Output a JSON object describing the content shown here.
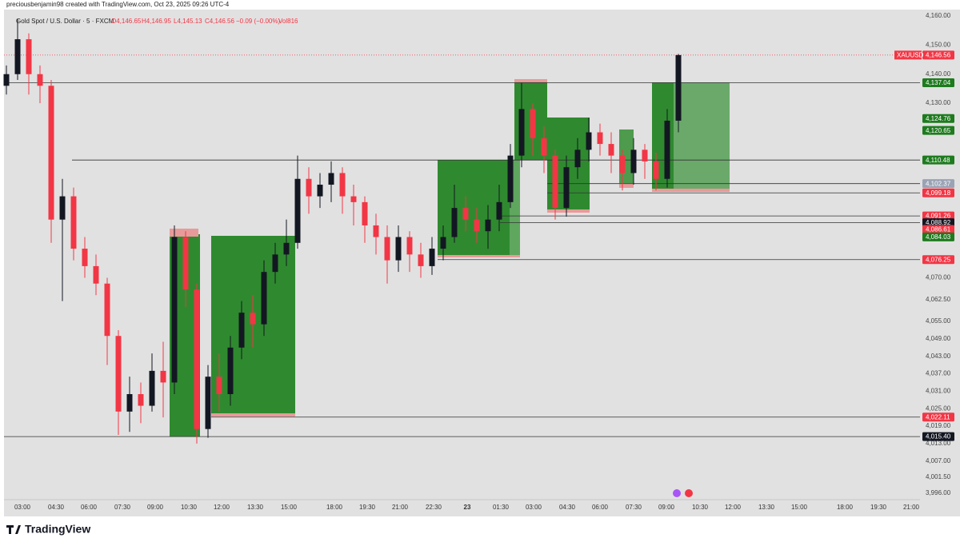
{
  "header": {
    "credit": "preciousbenjamin98 created with TradingView.com, Oct 23, 2025 09:26 UTC-4",
    "logo": "TradingView"
  },
  "chart_data": {
    "type": "candlestick",
    "title": "Gold Spot / U.S. Dollar · 5 · FXCM",
    "ohlc_legend": {
      "open": "O4,146.65",
      "high": "H4,146.95",
      "low": "L4,145.13",
      "close": "C4,146.56",
      "change": "−0.09 (−0.00%)",
      "volume": "Vol816"
    },
    "up_color": "#131722",
    "down_color": "#f23645",
    "open": [
      4136,
      4140,
      4152,
      4140,
      4136,
      4090,
      4098,
      4080,
      4074,
      4068,
      4050,
      4024,
      4030,
      4026,
      4038,
      4034,
      4084,
      4066,
      4018,
      4036,
      4030,
      4046,
      4058,
      4054,
      4072,
      4078,
      4082,
      4104,
      4098,
      4102,
      4106,
      4098,
      4096,
      4088,
      4084,
      4076,
      4084,
      4078,
      4074,
      4080,
      4084,
      4094,
      4090,
      4086,
      4090,
      4096,
      4112,
      4128,
      4118,
      4112,
      4094,
      4108,
      4114,
      4120,
      4116,
      4112,
      4106,
      4114,
      4110,
      4104,
      4124
    ],
    "high": [
      4143,
      4159,
      4154,
      4143,
      4138,
      4104,
      4101,
      4084,
      4078,
      4070,
      4052,
      4036,
      4034,
      4044,
      4048,
      4088,
      4086,
      4068,
      4040,
      4044,
      4050,
      4062,
      4064,
      4076,
      4082,
      4090,
      4112,
      4108,
      4106,
      4110,
      4108,
      4102,
      4098,
      4092,
      4088,
      4088,
      4086,
      4082,
      4084,
      4088,
      4102,
      4098,
      4094,
      4095,
      4102,
      4116,
      4137,
      4130,
      4122,
      4114,
      4112,
      4118,
      4125,
      4123,
      4120,
      4114,
      4118,
      4116,
      4113,
      4128,
      4146.95
    ],
    "low": [
      4133,
      4138,
      4133,
      4130,
      4082,
      4062,
      4076,
      4070,
      4064,
      4040,
      4016,
      4017,
      4020,
      4024,
      4022,
      4030,
      4060,
      4013,
      4015,
      4024,
      4026,
      4042,
      4046,
      4050,
      4068,
      4074,
      4080,
      4092,
      4094,
      4096,
      4092,
      4088,
      4082,
      4078,
      4068,
      4072,
      4072,
      4070,
      4071,
      4076,
      4082,
      4086,
      4082,
      4080,
      4086,
      4094,
      4108,
      4112,
      4106,
      4090,
      4091,
      4104,
      4110,
      4112,
      4106,
      4100,
      4102,
      4104,
      4100,
      4101,
      4120
    ],
    "close": [
      4140,
      4152,
      4140,
      4136,
      4090,
      4098,
      4080,
      4074,
      4068,
      4050,
      4024,
      4030,
      4026,
      4038,
      4034,
      4084,
      4066,
      4018,
      4036,
      4030,
      4046,
      4058,
      4054,
      4072,
      4078,
      4082,
      4104,
      4098,
      4102,
      4106,
      4098,
      4096,
      4088,
      4084,
      4076,
      4084,
      4078,
      4074,
      4080,
      4084,
      4094,
      4090,
      4086,
      4090,
      4096,
      4112,
      4128,
      4118,
      4112,
      4094,
      4108,
      4114,
      4120,
      4116,
      4112,
      4106,
      4114,
      4110,
      4104,
      4124,
      4146.56
    ],
    "ylim": [
      3994,
      4162
    ],
    "yticks": [
      {
        "value": 4160,
        "label": "4,160.00"
      },
      {
        "value": 4150,
        "label": "4,150.00"
      },
      {
        "value": 4140,
        "label": "4,140.00"
      },
      {
        "value": 4130,
        "label": "4,130.00"
      },
      {
        "value": 4070,
        "label": "4,070.00"
      },
      {
        "value": 4062.5,
        "label": "4,062.50"
      },
      {
        "value": 4055,
        "label": "4,055.00"
      },
      {
        "value": 4049,
        "label": "4,049.00"
      },
      {
        "value": 4043,
        "label": "4,043.00"
      },
      {
        "value": 4037,
        "label": "4,037.00"
      },
      {
        "value": 4031,
        "label": "4,031.00"
      },
      {
        "value": 4025,
        "label": "4,025.00"
      },
      {
        "value": 4019,
        "label": "4,019.00"
      },
      {
        "value": 4013,
        "label": "4,013.00"
      },
      {
        "value": 4007,
        "label": "4,007.00"
      },
      {
        "value": 4001.5,
        "label": "4,001.50"
      },
      {
        "value": 3996,
        "label": "3,996.00"
      }
    ],
    "xtick_labels": [
      "03:00",
      "04:30",
      "06:00",
      "07:30",
      "09:00",
      "10:30",
      "12:00",
      "13:30",
      "15:00",
      "18:00",
      "19:30",
      "21:00",
      "22:30",
      "23",
      "01:30",
      "03:00",
      "04:30",
      "06:00",
      "07:30",
      "09:00",
      "10:30",
      "12:00",
      "13:30",
      "15:00",
      "18:00",
      "19:30",
      "21:00"
    ],
    "symbol_tag": "XAUUSD",
    "price_levels": [
      {
        "value": 4146.56,
        "label": "4,146.56",
        "color": "#f23645"
      },
      {
        "value": 4137.04,
        "label": "4,137.04",
        "color": "#1e7b1e"
      },
      {
        "value": 4124.76,
        "label": "4,124.76",
        "color": "#1e7b1e"
      },
      {
        "value": 4120.65,
        "label": "4,120.65",
        "color": "#1e7b1e"
      },
      {
        "value": 4110.48,
        "label": "4,110.48",
        "color": "#1e7b1e"
      },
      {
        "value": 4102.37,
        "label": "4,102.37",
        "color": "#9aa3b5"
      },
      {
        "value": 4099.18,
        "label": "4,099.18",
        "color": "#f23645"
      },
      {
        "value": 4091.26,
        "label": "4,091.26",
        "color": "#f23645"
      },
      {
        "value": 4088.92,
        "label": "4,088.92",
        "color": "#131722"
      },
      {
        "value": 4086.61,
        "label": "4,086.61",
        "color": "#f23645"
      },
      {
        "value": 4084.03,
        "label": "4,084.03",
        "color": "#1e7b1e"
      },
      {
        "value": 4076.25,
        "label": "4,076.25",
        "color": "#f23645"
      },
      {
        "value": 4022.11,
        "label": "4,022.11",
        "color": "#f23645"
      },
      {
        "value": 4015.4,
        "label": "4,015.40",
        "color": "#131722"
      }
    ]
  }
}
